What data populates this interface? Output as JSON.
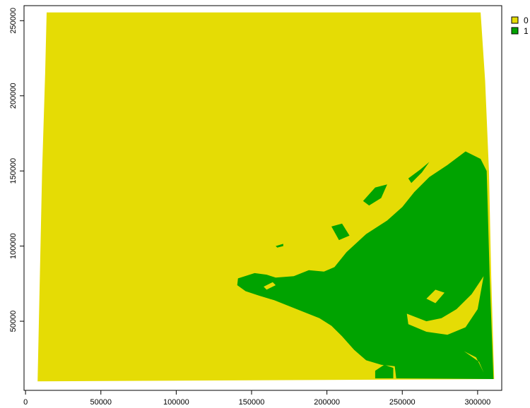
{
  "chart_data": {
    "type": "heatmap",
    "title": "",
    "xlabel": "",
    "ylabel": "",
    "xlim": [
      -1000,
      316000
    ],
    "ylim": [
      4000,
      260000
    ],
    "xticks": [
      0,
      50000,
      100000,
      150000,
      200000,
      250000,
      300000
    ],
    "xtick_labels": [
      "0",
      "50000",
      "100000",
      "150000",
      "200000",
      "250000",
      "300000"
    ],
    "yticks": [
      50000,
      100000,
      150000,
      200000,
      250000
    ],
    "ytick_labels": [
      "50000",
      "100000",
      "150000",
      "200000",
      "250000"
    ],
    "grid": false,
    "legend_position": "right",
    "classes": [
      {
        "value": 0,
        "label": "0",
        "color": "#e5dc05"
      },
      {
        "value": 1,
        "label": "1",
        "color": "#00a300"
      }
    ],
    "extent_polygon": [
      [
        14000,
        255500
      ],
      [
        302000,
        255500
      ],
      [
        305000,
        210000
      ],
      [
        307500,
        150000
      ],
      [
        309000,
        80000
      ],
      [
        311000,
        11500
      ],
      [
        8000,
        10000
      ],
      [
        11000,
        150000
      ],
      [
        13000,
        215000
      ]
    ],
    "class1_regions": [
      [
        [
          141000,
          78500
        ],
        [
          152000,
          82000
        ],
        [
          160000,
          81000
        ],
        [
          166000,
          79000
        ],
        [
          178000,
          80000
        ],
        [
          188000,
          84000
        ],
        [
          198000,
          83000
        ],
        [
          205000,
          86000
        ],
        [
          213000,
          96000
        ],
        [
          226000,
          108000
        ],
        [
          240000,
          117000
        ],
        [
          250000,
          126000
        ],
        [
          258000,
          136000
        ],
        [
          268000,
          146000
        ],
        [
          280000,
          154000
        ],
        [
          292000,
          163000
        ],
        [
          302000,
          158000
        ],
        [
          306000,
          150000
        ],
        [
          308000,
          80000
        ],
        [
          310500,
          11500
        ],
        [
          246000,
          12000
        ],
        [
          245000,
          20000
        ],
        [
          236000,
          21000
        ],
        [
          226000,
          24000
        ],
        [
          218000,
          31000
        ],
        [
          210000,
          40000
        ],
        [
          203000,
          47000
        ],
        [
          195000,
          52000
        ],
        [
          185000,
          56000
        ],
        [
          175000,
          60000
        ],
        [
          165000,
          64000
        ],
        [
          155000,
          67000
        ],
        [
          146000,
          70000
        ],
        [
          140500,
          74000
        ]
      ],
      [
        [
          203000,
          113000
        ],
        [
          210000,
          115000
        ],
        [
          215000,
          107000
        ],
        [
          208000,
          104000
        ]
      ],
      [
        [
          224000,
          130000
        ],
        [
          232000,
          139000
        ],
        [
          240000,
          141000
        ],
        [
          236000,
          132000
        ],
        [
          228000,
          127000
        ]
      ],
      [
        [
          254000,
          145000
        ],
        [
          262000,
          151000
        ],
        [
          268000,
          156000
        ],
        [
          263000,
          149000
        ],
        [
          256000,
          142000
        ]
      ],
      [
        [
          166000,
          100000
        ],
        [
          171000,
          101500
        ],
        [
          171000,
          100000
        ],
        [
          167000,
          99000
        ]
      ],
      [
        [
          232000,
          12000
        ],
        [
          244000,
          12000
        ],
        [
          244000,
          19000
        ],
        [
          238000,
          21000
        ],
        [
          232000,
          17000
        ]
      ]
    ],
    "class0_holes": [
      [
        [
          253000,
          55000
        ],
        [
          266000,
          50000
        ],
        [
          276000,
          52000
        ],
        [
          286000,
          58000
        ],
        [
          296000,
          68000
        ],
        [
          304000,
          80000
        ],
        [
          300000,
          58000
        ],
        [
          292000,
          46000
        ],
        [
          280000,
          41000
        ],
        [
          266000,
          43000
        ],
        [
          254000,
          48000
        ]
      ],
      [
        [
          291000,
          30000
        ],
        [
          301000,
          23000
        ],
        [
          304000,
          16000
        ],
        [
          299000,
          26000
        ]
      ],
      [
        [
          266000,
          65000
        ],
        [
          272000,
          71000
        ],
        [
          278000,
          69000
        ],
        [
          272000,
          62000
        ]
      ],
      [
        [
          158000,
          73000
        ],
        [
          164000,
          76000
        ],
        [
          166000,
          74000
        ],
        [
          160000,
          71000
        ]
      ]
    ]
  }
}
